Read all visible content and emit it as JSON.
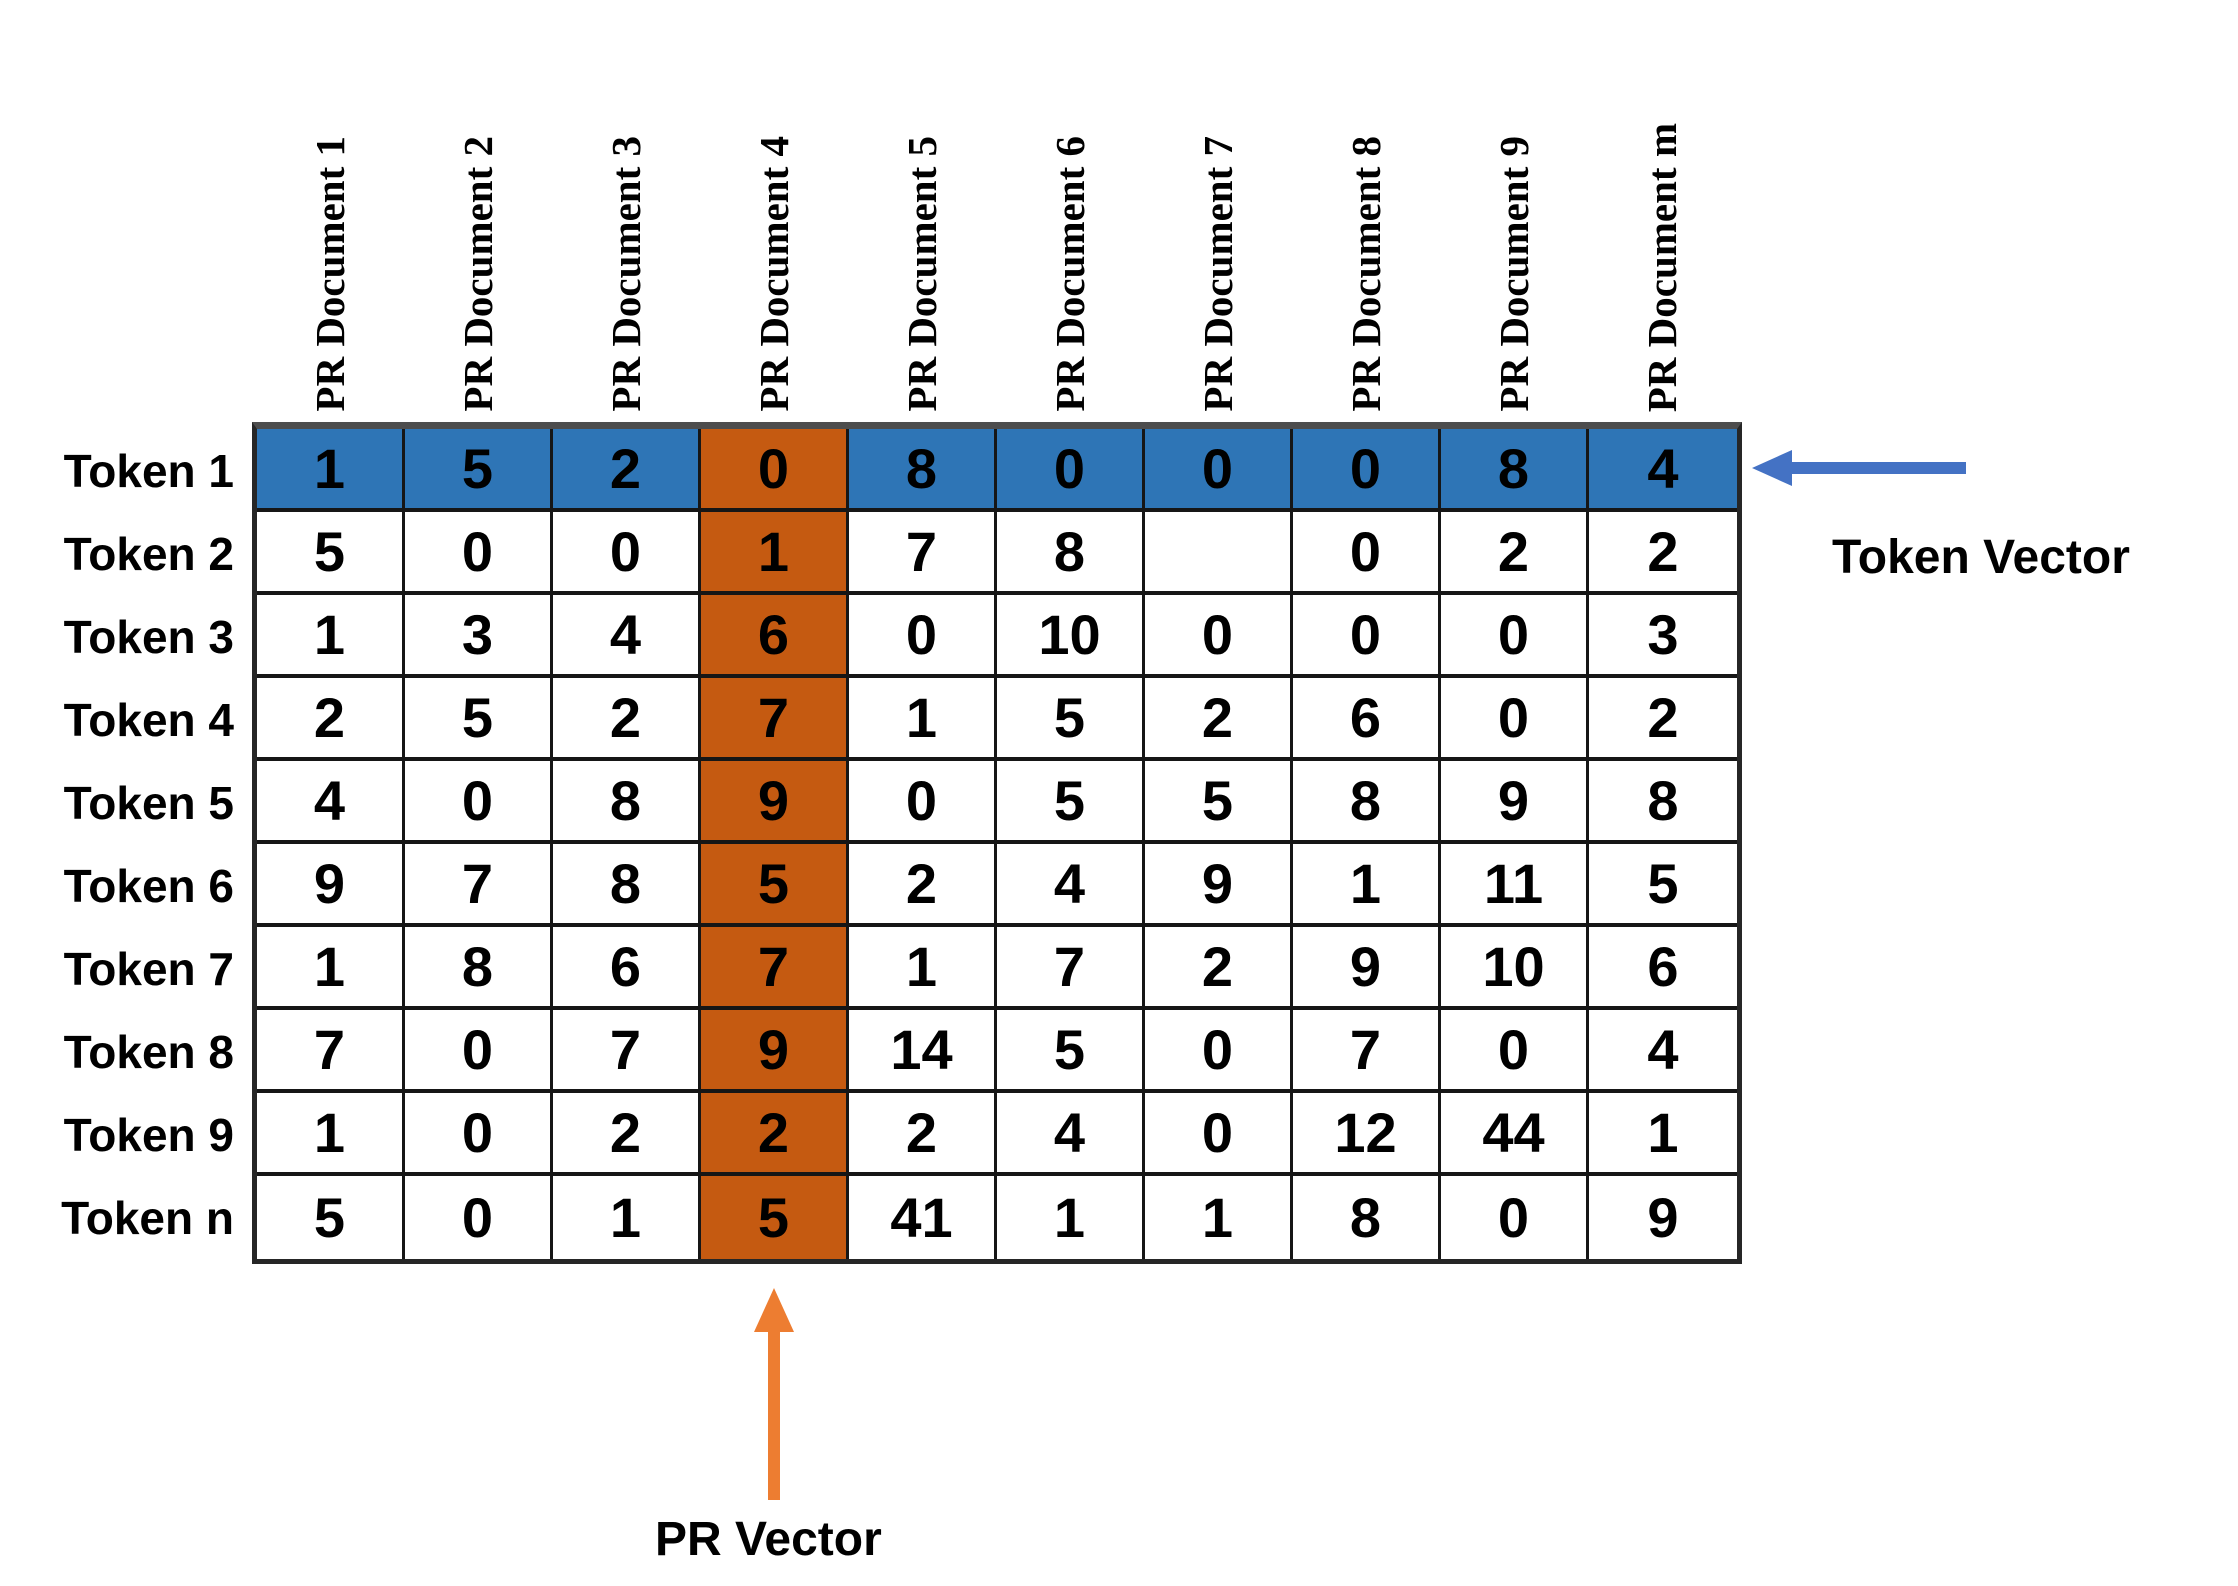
{
  "diagram": {
    "column_headers": [
      "PR Document 1",
      "PR Document 2",
      "PR Document 3",
      "PR Document 4",
      "PR Document 5",
      "PR Document 6",
      "PR Document 7",
      "PR Document 8",
      "PR Document 9",
      "PR Document m"
    ],
    "row_labels": [
      "Token 1",
      "Token 2",
      "Token 3",
      "Token 4",
      "Token 5",
      "Token 6",
      "Token 7",
      "Token 8",
      "Token 9",
      "Token n"
    ],
    "matrix": [
      [
        "1",
        "5",
        "2",
        "0",
        "8",
        "0",
        "0",
        "0",
        "8",
        "4"
      ],
      [
        "5",
        "0",
        "0",
        "1",
        "7",
        "8",
        "",
        "0",
        "2",
        "2"
      ],
      [
        "1",
        "3",
        "4",
        "6",
        "0",
        "10",
        "0",
        "0",
        "0",
        "3"
      ],
      [
        "2",
        "5",
        "2",
        "7",
        "1",
        "5",
        "2",
        "6",
        "0",
        "2"
      ],
      [
        "4",
        "0",
        "8",
        "9",
        "0",
        "5",
        "5",
        "8",
        "9",
        "8"
      ],
      [
        "9",
        "7",
        "8",
        "5",
        "2",
        "4",
        "9",
        "1",
        "11",
        "5"
      ],
      [
        "1",
        "8",
        "6",
        "7",
        "1",
        "7",
        "2",
        "9",
        "10",
        "6"
      ],
      [
        "7",
        "0",
        "7",
        "9",
        "14",
        "5",
        "0",
        "7",
        "0",
        "4"
      ],
      [
        "1",
        "0",
        "2",
        "2",
        "2",
        "4",
        "0",
        "12",
        "44",
        "1"
      ],
      [
        "5",
        "0",
        "1",
        "5",
        "41",
        "1",
        "1",
        "8",
        "0",
        "9"
      ]
    ],
    "highlights": {
      "token_vector_row_index": 0,
      "pr_vector_col_index": 3,
      "row_color": "#2E75B6",
      "col_color": "#C55A11"
    },
    "annotations": {
      "token_vector_label": "Token Vector",
      "pr_vector_label": "PR Vector",
      "token_arrow_color": "#4472C4",
      "pr_arrow_color": "#ED7D31"
    }
  }
}
